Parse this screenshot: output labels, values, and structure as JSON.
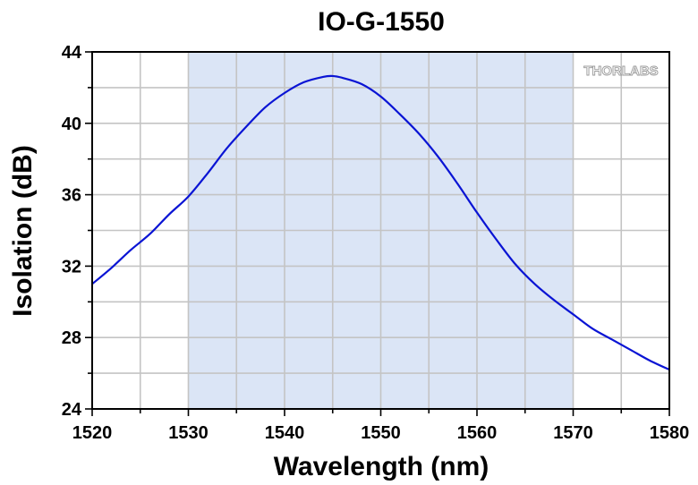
{
  "chart_data": {
    "type": "line",
    "title": "IO-G-1550",
    "xlabel": "Wavelength (nm)",
    "ylabel": "Isolation (dB)",
    "xlim": [
      1520,
      1580
    ],
    "ylim": [
      24,
      44
    ],
    "x_ticks": [
      1520,
      1530,
      1540,
      1550,
      1560,
      1570,
      1580
    ],
    "y_ticks": [
      24,
      28,
      32,
      36,
      40,
      44
    ],
    "x_minor_step": 5,
    "y_minor_step": 2,
    "grid": true,
    "shaded_region": {
      "x": [
        1530,
        1570
      ],
      "color": "#dbe5f6"
    },
    "series": [
      {
        "color": "#0a14d4",
        "x": [
          1520,
          1522,
          1524,
          1526,
          1528,
          1530,
          1532,
          1534,
          1536,
          1538,
          1540,
          1542,
          1544,
          1545,
          1546,
          1548,
          1550,
          1552,
          1554,
          1556,
          1558,
          1560,
          1562,
          1564,
          1566,
          1568,
          1570,
          1572,
          1574,
          1576,
          1578,
          1580
        ],
        "y": [
          31.0,
          31.9,
          32.9,
          33.8,
          34.9,
          35.9,
          37.2,
          38.6,
          39.8,
          40.9,
          41.7,
          42.3,
          42.6,
          42.65,
          42.55,
          42.2,
          41.5,
          40.5,
          39.4,
          38.1,
          36.6,
          35.0,
          33.5,
          32.1,
          31.0,
          30.1,
          29.3,
          28.5,
          27.9,
          27.3,
          26.7,
          26.2
        ]
      }
    ]
  },
  "watermark": "THORLABS"
}
